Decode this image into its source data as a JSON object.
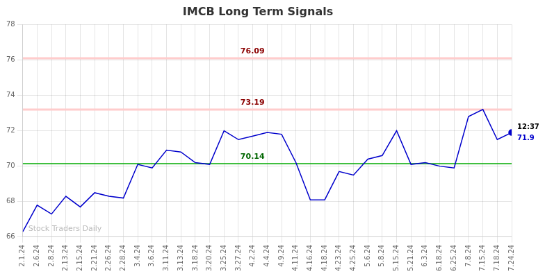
{
  "chart_data": {
    "type": "line",
    "title": "IMCB Long Term Signals",
    "categories": [
      "2.1.24",
      "2.6.24",
      "2.8.24",
      "2.13.24",
      "2.15.24",
      "2.21.24",
      "2.26.24",
      "2.28.24",
      "3.4.24",
      "3.6.24",
      "3.11.24",
      "3.13.24",
      "3.18.24",
      "3.20.24",
      "3.25.24",
      "3.27.24",
      "4.2.24",
      "4.4.24",
      "4.9.24",
      "4.11.24",
      "4.16.24",
      "4.18.24",
      "4.23.24",
      "4.25.24",
      "5.6.24",
      "5.8.24",
      "5.15.24",
      "5.21.24",
      "6.3.24",
      "6.18.24",
      "6.25.24",
      "7.8.24",
      "7.15.24",
      "7.18.24",
      "7.24.24"
    ],
    "values": [
      66.3,
      67.8,
      67.3,
      68.3,
      67.7,
      68.5,
      68.3,
      68.2,
      70.1,
      69.9,
      70.9,
      70.8,
      70.2,
      70.1,
      72.0,
      71.5,
      71.7,
      71.9,
      71.8,
      70.2,
      68.1,
      68.1,
      69.7,
      69.5,
      70.4,
      70.6,
      72.0,
      70.1,
      70.2,
      70.0,
      69.9,
      72.8,
      73.2,
      71.5,
      71.9
    ],
    "color": "#0000cc",
    "ylim": [
      66,
      78
    ],
    "yticks": [
      66,
      68,
      70,
      72,
      74,
      76,
      78
    ],
    "grid": true,
    "hlines": [
      {
        "value": 76.09,
        "label": "76.09",
        "color": "#ffcccc",
        "label_color": "#8b0000"
      },
      {
        "value": 73.19,
        "label": "73.19",
        "color": "#ffcccc",
        "label_color": "#8b0000"
      },
      {
        "value": 70.14,
        "label": "70.14",
        "color": "#00aa00",
        "label_color": "#006600"
      }
    ],
    "last_time": "12:37",
    "last_value_label": "71.9",
    "watermark": "Stock Traders Daily"
  }
}
